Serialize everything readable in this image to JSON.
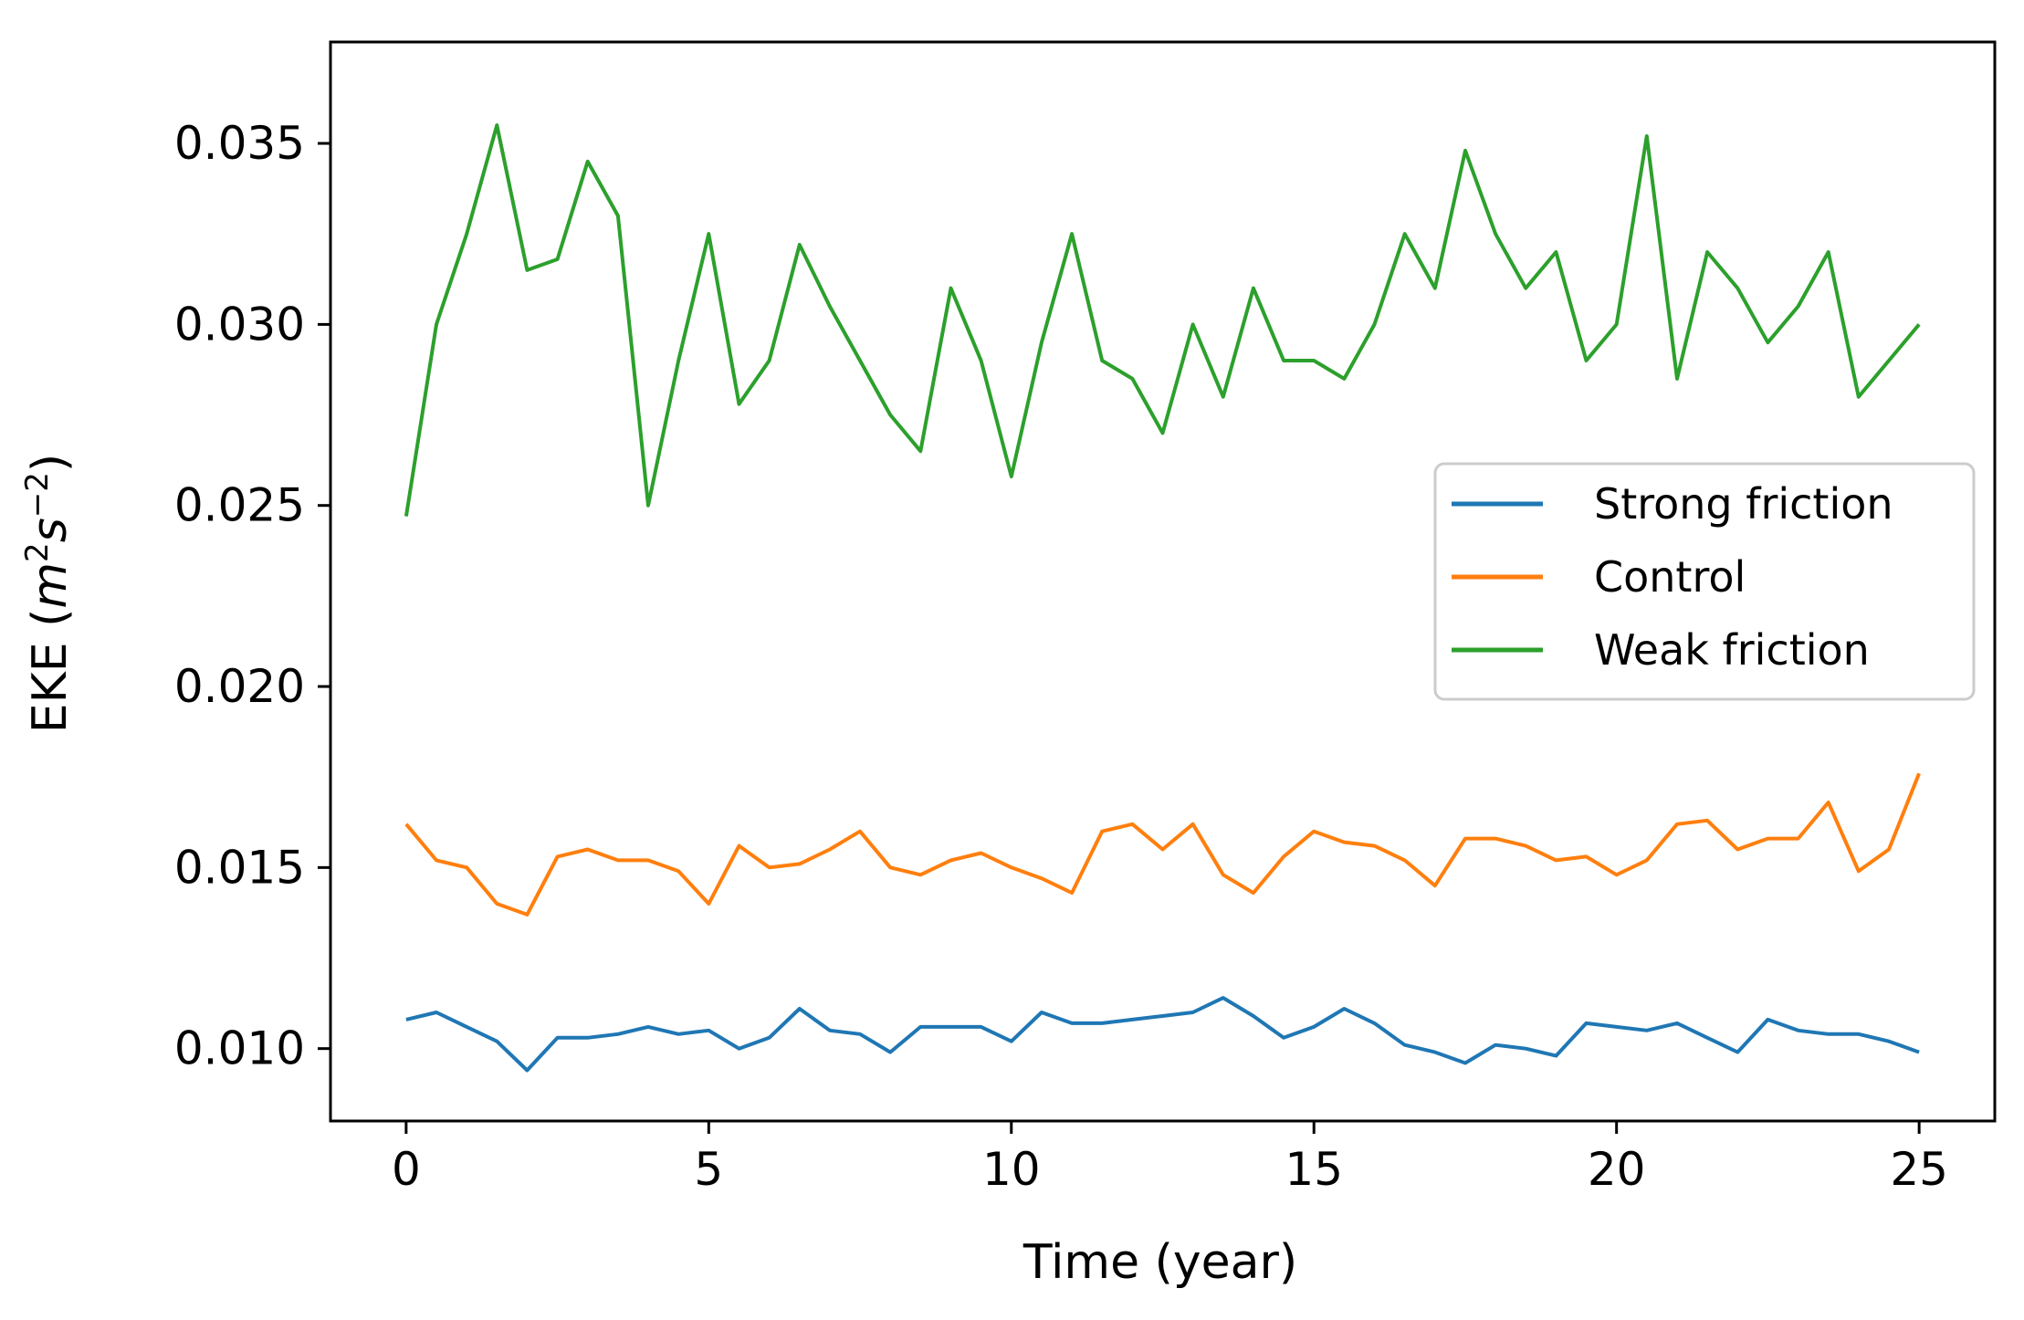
{
  "chart_data": {
    "type": "line",
    "title": "",
    "xlabel": "Time (year)",
    "ylabel": {
      "prefix": "EKE (",
      "m": "m",
      "m_exp": "2",
      "s": "s",
      "s_exp": "−2",
      "suffix": ")"
    },
    "xlim": [
      -1.25,
      26.25
    ],
    "ylim": [
      0.008,
      0.0378
    ],
    "xticks": [
      0,
      5,
      10,
      15,
      20,
      25
    ],
    "xtick_labels": [
      "0",
      "5",
      "10",
      "15",
      "20",
      "25"
    ],
    "yticks": [
      0.01,
      0.015,
      0.02,
      0.025,
      0.03,
      0.035
    ],
    "ytick_labels": [
      "0.010",
      "0.015",
      "0.020",
      "0.025",
      "0.030",
      "0.035"
    ],
    "legend_position": "center-right",
    "series": [
      {
        "name": "Strong friction",
        "color": "#1f77b4",
        "x": [
          0.0,
          0.5,
          1.0,
          1.5,
          2.0,
          2.5,
          3.0,
          3.5,
          4.0,
          4.5,
          5.0,
          5.5,
          6.0,
          6.5,
          7.0,
          7.5,
          8.0,
          8.5,
          9.0,
          9.5,
          10.0,
          10.5,
          11.0,
          11.5,
          12.0,
          12.5,
          13.0,
          13.5,
          14.0,
          14.5,
          15.0,
          15.5,
          16.0,
          16.5,
          17.0,
          17.5,
          18.0,
          18.5,
          19.0,
          19.5,
          20.0,
          20.5,
          21.0,
          21.5,
          22.0,
          22.5,
          23.0,
          23.5,
          24.0,
          24.5,
          25.0
        ],
        "y": [
          0.0108,
          0.011,
          0.0106,
          0.0102,
          0.0094,
          0.0103,
          0.0103,
          0.0104,
          0.0106,
          0.0104,
          0.0105,
          0.01,
          0.0103,
          0.0111,
          0.0105,
          0.0104,
          0.0099,
          0.0106,
          0.0106,
          0.0106,
          0.0102,
          0.011,
          0.0107,
          0.0107,
          0.0108,
          0.0109,
          0.011,
          0.0114,
          0.0109,
          0.0103,
          0.0106,
          0.0111,
          0.0107,
          0.0101,
          0.0099,
          0.0096,
          0.0101,
          0.01,
          0.0098,
          0.0107,
          0.0106,
          0.0105,
          0.0107,
          0.0103,
          0.0099,
          0.0108,
          0.0105,
          0.0104,
          0.0104,
          0.0102,
          0.0099
        ]
      },
      {
        "name": "Control",
        "color": "#ff7f0e",
        "x": [
          0.0,
          0.5,
          1.0,
          1.5,
          2.0,
          2.5,
          3.0,
          3.5,
          4.0,
          4.5,
          5.0,
          5.5,
          6.0,
          6.5,
          7.0,
          7.5,
          8.0,
          8.5,
          9.0,
          9.5,
          10.0,
          10.5,
          11.0,
          11.5,
          12.0,
          12.5,
          13.0,
          13.5,
          14.0,
          14.5,
          15.0,
          15.5,
          16.0,
          16.5,
          17.0,
          17.5,
          18.0,
          18.5,
          19.0,
          19.5,
          20.0,
          20.5,
          21.0,
          21.5,
          22.0,
          22.5,
          23.0,
          23.5,
          24.0,
          24.5,
          25.0
        ],
        "y": [
          0.0162,
          0.0152,
          0.015,
          0.014,
          0.0137,
          0.0153,
          0.0155,
          0.0152,
          0.0152,
          0.0149,
          0.014,
          0.0156,
          0.015,
          0.0151,
          0.0155,
          0.016,
          0.015,
          0.0148,
          0.0152,
          0.0154,
          0.015,
          0.0147,
          0.0143,
          0.016,
          0.0162,
          0.0155,
          0.0162,
          0.0148,
          0.0143,
          0.0153,
          0.016,
          0.0157,
          0.0156,
          0.0152,
          0.0145,
          0.0158,
          0.0158,
          0.0156,
          0.0152,
          0.0153,
          0.0148,
          0.0152,
          0.0162,
          0.0163,
          0.0155,
          0.0158,
          0.0158,
          0.0168,
          0.0149,
          0.0155,
          0.0176
        ]
      },
      {
        "name": "Weak friction",
        "color": "#2ca02c",
        "x": [
          0.0,
          0.5,
          1.0,
          1.5,
          2.0,
          2.5,
          3.0,
          3.5,
          4.0,
          4.5,
          5.0,
          5.5,
          6.0,
          6.5,
          7.0,
          7.5,
          8.0,
          8.5,
          9.0,
          9.5,
          10.0,
          10.5,
          11.0,
          11.5,
          12.0,
          12.5,
          13.0,
          13.5,
          14.0,
          14.5,
          15.0,
          15.5,
          16.0,
          16.5,
          17.0,
          17.5,
          18.0,
          18.5,
          19.0,
          19.5,
          20.0,
          20.5,
          21.0,
          21.5,
          22.0,
          22.5,
          23.0,
          23.5,
          24.0,
          24.5,
          25.0
        ],
        "y": [
          0.0247,
          0.03,
          0.0325,
          0.0355,
          0.0315,
          0.0318,
          0.0345,
          0.033,
          0.025,
          0.029,
          0.0325,
          0.0278,
          0.029,
          0.0322,
          0.0305,
          0.029,
          0.0275,
          0.0265,
          0.031,
          0.029,
          0.0258,
          0.0295,
          0.0325,
          0.029,
          0.0285,
          0.027,
          0.03,
          0.028,
          0.031,
          0.029,
          0.029,
          0.0285,
          0.03,
          0.0325,
          0.031,
          0.0348,
          0.0325,
          0.031,
          0.032,
          0.029,
          0.03,
          0.0352,
          0.0285,
          0.032,
          0.031,
          0.0295,
          0.0305,
          0.032,
          0.028,
          0.029,
          0.03
        ]
      }
    ]
  }
}
